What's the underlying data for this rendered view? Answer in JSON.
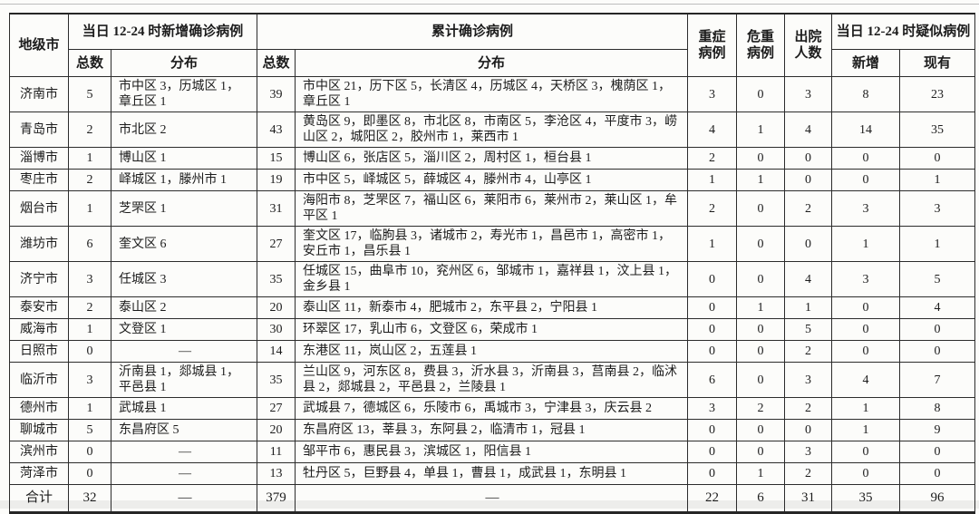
{
  "chart_data": {
    "type": "table",
    "header": {
      "city": "地级市",
      "new_group": "当日 12-24 时新增确诊病例",
      "new_total": "总数",
      "new_dist": "分布",
      "cum_group": "累计确诊病例",
      "cum_total": "总数",
      "cum_dist": "分布",
      "severe": [
        "重症",
        "病例"
      ],
      "critical": [
        "危重",
        "病例"
      ],
      "discharged": [
        "出院",
        "人数"
      ],
      "suspected_group": "当日 12-24 时疑似病例",
      "susp_new": "新增",
      "susp_existing": "现有"
    },
    "rows": [
      {
        "city": "济南市",
        "new_total": 5,
        "new_dist": "市中区 3，历城区 1，章丘区 1",
        "cum_total": 39,
        "cum_dist": "市中区 21，历下区 5，长清区 4，历城区 4，天桥区 3，槐荫区 1，章丘区 1",
        "severe": 3,
        "critical": 0,
        "discharged": 3,
        "susp_new": 8,
        "susp_existing": 23
      },
      {
        "city": "青岛市",
        "new_total": 2,
        "new_dist": "市北区 2",
        "cum_total": 43,
        "cum_dist": "黄岛区 9，即墨区 8，市北区 8，市南区 5，李沧区 4，平度市 3，崂山区 2，城阳区 2，胶州市 1，莱西市 1",
        "severe": 4,
        "critical": 1,
        "discharged": 4,
        "susp_new": 14,
        "susp_existing": 35
      },
      {
        "city": "淄博市",
        "new_total": 1,
        "new_dist": "博山区 1",
        "cum_total": 15,
        "cum_dist": "博山区 6，张店区 5，淄川区 2，周村区 1，桓台县 1",
        "severe": 2,
        "critical": 0,
        "discharged": 0,
        "susp_new": 0,
        "susp_existing": 0
      },
      {
        "city": "枣庄市",
        "new_total": 2,
        "new_dist": "峄城区 1，滕州市 1",
        "cum_total": 19,
        "cum_dist": "市中区 5，峄城区 5，薛城区 4，滕州市 4，山亭区 1",
        "severe": 1,
        "critical": 1,
        "discharged": 0,
        "susp_new": 0,
        "susp_existing": 1
      },
      {
        "city": "烟台市",
        "new_total": 1,
        "new_dist": "芝罘区 1",
        "cum_total": 31,
        "cum_dist": "海阳市 8，芝罘区 7，福山区 6，莱阳市 6，莱州市 2，莱山区 1，牟平区 1",
        "severe": 2,
        "critical": 0,
        "discharged": 2,
        "susp_new": 3,
        "susp_existing": 3
      },
      {
        "city": "潍坊市",
        "new_total": 6,
        "new_dist": "奎文区 6",
        "cum_total": 27,
        "cum_dist": "奎文区 17，临朐县 3，诸城市 2，寿光市 1，昌邑市 1，高密市 1，安丘市 1，昌乐县 1",
        "severe": 1,
        "critical": 0,
        "discharged": 0,
        "susp_new": 1,
        "susp_existing": 1
      },
      {
        "city": "济宁市",
        "new_total": 3,
        "new_dist": "任城区 3",
        "cum_total": 35,
        "cum_dist": "任城区 15，曲阜市 10，兖州区 6，邹城市 1，嘉祥县 1，汶上县 1，金乡县 1",
        "severe": 0,
        "critical": 0,
        "discharged": 4,
        "susp_new": 3,
        "susp_existing": 5
      },
      {
        "city": "泰安市",
        "new_total": 2,
        "new_dist": "泰山区 2",
        "cum_total": 20,
        "cum_dist": "泰山区 11，新泰市 4，肥城市 2，东平县 2，宁阳县 1",
        "severe": 0,
        "critical": 1,
        "discharged": 1,
        "susp_new": 0,
        "susp_existing": 4
      },
      {
        "city": "威海市",
        "new_total": 1,
        "new_dist": "文登区 1",
        "cum_total": 30,
        "cum_dist": "环翠区 17，乳山市 6，文登区 6，荣成市 1",
        "severe": 0,
        "critical": 0,
        "discharged": 5,
        "susp_new": 0,
        "susp_existing": 0
      },
      {
        "city": "日照市",
        "new_total": 0,
        "new_dist": "—",
        "cum_total": 14,
        "cum_dist": "东港区 11，岚山区 2，五莲县 1",
        "severe": 0,
        "critical": 0,
        "discharged": 2,
        "susp_new": 0,
        "susp_existing": 0
      },
      {
        "city": "临沂市",
        "new_total": 3,
        "new_dist": "沂南县 1，郯城县 1，平邑县 1",
        "cum_total": 35,
        "cum_dist": "兰山区 9，河东区 8，费县 3，沂水县 3，沂南县 3，莒南县 2，临沭县 2，郯城县 2，平邑县 2，兰陵县 1",
        "severe": 6,
        "critical": 0,
        "discharged": 3,
        "susp_new": 4,
        "susp_existing": 7
      },
      {
        "city": "德州市",
        "new_total": 1,
        "new_dist": "武城县 1",
        "cum_total": 27,
        "cum_dist": "武城县 7，德城区 6，乐陵市 6，禹城市 3，宁津县 3，庆云县 2",
        "severe": 3,
        "critical": 2,
        "discharged": 2,
        "susp_new": 1,
        "susp_existing": 8
      },
      {
        "city": "聊城市",
        "new_total": 5,
        "new_dist": "东昌府区 5",
        "cum_total": 20,
        "cum_dist": "东昌府区 13，莘县 3，东阿县 2，临清市 1，冠县 1",
        "severe": 0,
        "critical": 0,
        "discharged": 0,
        "susp_new": 1,
        "susp_existing": 9
      },
      {
        "city": "滨州市",
        "new_total": 0,
        "new_dist": "—",
        "cum_total": 11,
        "cum_dist": "邹平市 6，惠民县 3，滨城区 1，阳信县 1",
        "severe": 0,
        "critical": 0,
        "discharged": 3,
        "susp_new": 0,
        "susp_existing": 0
      },
      {
        "city": "菏泽市",
        "new_total": 0,
        "new_dist": "—",
        "cum_total": 13,
        "cum_dist": "牡丹区 5，巨野县 4，单县 1，曹县 1，成武县 1，东明县 1",
        "severe": 0,
        "critical": 1,
        "discharged": 2,
        "susp_new": 0,
        "susp_existing": 0
      }
    ],
    "total_row": {
      "city": "合计",
      "new_total": 32,
      "new_dist": "—",
      "cum_total": 379,
      "cum_dist": "—",
      "severe": 22,
      "critical": 6,
      "discharged": 31,
      "susp_new": 35,
      "susp_existing": 96
    }
  }
}
